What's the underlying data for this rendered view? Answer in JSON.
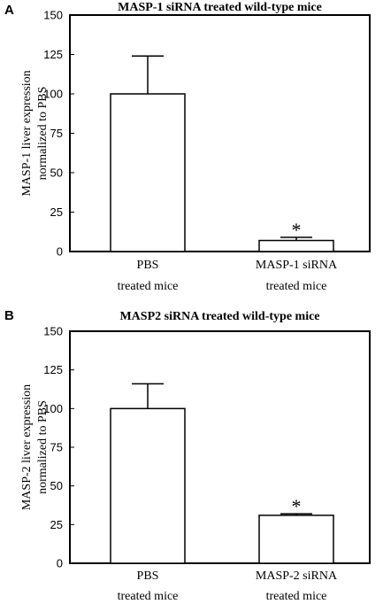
{
  "chart_data": [
    {
      "type": "bar",
      "panel": "A",
      "title": "MASP-1 siRNA treated wild-type  mice",
      "ylabel_lines": [
        "MASP-1 liver  expression",
        "normalized  to PBS"
      ],
      "categories": [
        {
          "line1": "PBS",
          "line2": "treated mice"
        },
        {
          "line1": "MASP-1 siRNA",
          "line2": "treated mice"
        }
      ],
      "values": [
        100,
        7
      ],
      "error_upper": [
        124,
        9
      ],
      "annotations": [
        "",
        "*"
      ],
      "ylim": [
        0,
        150
      ],
      "yticks": [
        0,
        25,
        50,
        75,
        100,
        125,
        150
      ],
      "grid": false
    },
    {
      "type": "bar",
      "panel": "B",
      "title": "MASP2 siRNA treated wild-type  mice",
      "ylabel_lines": [
        "MASP-2 liver  expression",
        "normalized  to PBS"
      ],
      "categories": [
        {
          "line1": "PBS",
          "line2": "treated mice"
        },
        {
          "line1": "MASP-2 siRNA",
          "line2": "treated mice"
        }
      ],
      "values": [
        100,
        31
      ],
      "error_upper": [
        116,
        32
      ],
      "annotations": [
        "",
        "*"
      ],
      "ylim": [
        0,
        150
      ],
      "yticks": [
        0,
        25,
        50,
        75,
        100,
        125,
        150
      ],
      "grid": false
    }
  ]
}
